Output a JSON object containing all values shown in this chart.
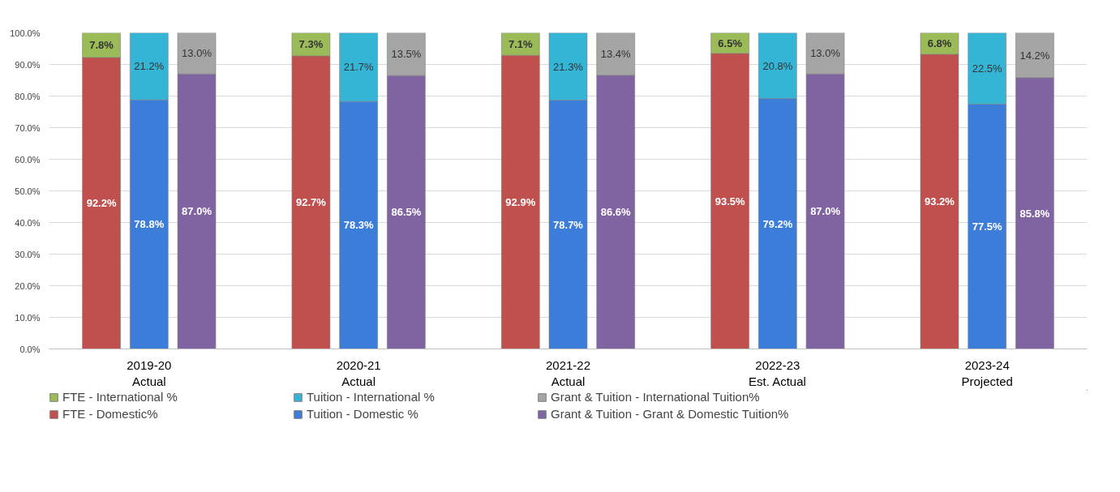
{
  "chart_data": {
    "type": "bar",
    "stacked": true,
    "categories": [
      null,
      "2019-20\nActual",
      null,
      null,
      "2020-21\nActual",
      null,
      null,
      "2021-22\nActual",
      null,
      null,
      "2022-23\nEst. Actual",
      null,
      null,
      "2023-24\nProjected",
      null
    ],
    "ylim": [
      0,
      100
    ],
    "yticks": [
      {
        "value": 0,
        "label": "0.0%"
      },
      {
        "value": 10,
        "label": "10.0%"
      },
      {
        "value": 20,
        "label": "20.0%"
      },
      {
        "value": 30,
        "label": "30.0%"
      },
      {
        "value": 40,
        "label": "40.0%"
      },
      {
        "value": 50,
        "label": "50.0%"
      },
      {
        "value": 60,
        "label": "60.0%"
      },
      {
        "value": 70,
        "label": "70.0%"
      },
      {
        "value": 80,
        "label": "80.0%"
      },
      {
        "value": 90,
        "label": "90.0%"
      },
      {
        "value": 100,
        "label": "100.0%"
      }
    ],
    "grid": "y",
    "legend": "bottom",
    "series": [
      {
        "name": "FTE - Domestic%",
        "color": "#c0504d",
        "values": [
          92.2,
          null,
          null,
          92.7,
          null,
          null,
          92.9,
          null,
          null,
          93.5,
          null,
          null,
          93.2,
          null,
          null
        ],
        "value_labels": [
          "92.2%",
          null,
          null,
          "92.7%",
          null,
          null,
          "92.9%",
          null,
          null,
          "93.5%",
          null,
          null,
          "93.2%",
          null,
          null
        ]
      },
      {
        "name": "Tuition - Domestic %",
        "color": "#3b7dd8",
        "values": [
          null,
          78.8,
          null,
          null,
          78.3,
          null,
          null,
          78.7,
          null,
          null,
          79.2,
          null,
          null,
          77.5,
          null
        ],
        "value_labels": [
          null,
          "78.8%",
          null,
          null,
          "78.3%",
          null,
          null,
          "78.7%",
          null,
          null,
          "79.2%",
          null,
          null,
          "77.5%",
          null
        ]
      },
      {
        "name": "Grant & Tuition - Grant & Domestic Tuition%",
        "color": "#8064a2",
        "values": [
          null,
          null,
          87.0,
          null,
          null,
          86.5,
          null,
          null,
          86.6,
          null,
          null,
          87.0,
          null,
          null,
          85.8
        ],
        "value_labels": [
          null,
          null,
          "87.0%",
          null,
          null,
          "86.5%",
          null,
          null,
          "86.6%",
          null,
          null,
          "87.0%",
          null,
          null,
          "85.8%"
        ]
      },
      {
        "name": "FTE - International %",
        "color": "#9bbb59",
        "values": [
          7.8,
          null,
          null,
          7.3,
          null,
          null,
          7.1,
          null,
          null,
          6.5,
          null,
          null,
          6.8,
          null,
          null
        ],
        "value_labels": [
          "7.8%",
          null,
          null,
          "7.3%",
          null,
          null,
          "7.1%",
          null,
          null,
          "6.5%",
          null,
          null,
          "6.8%",
          null,
          null
        ]
      },
      {
        "name": "Tuition - International %",
        "color": "#35b5d6",
        "values": [
          null,
          21.2,
          null,
          null,
          21.7,
          null,
          null,
          21.3,
          null,
          null,
          20.8,
          null,
          null,
          22.5,
          null
        ],
        "value_labels": [
          null,
          "21.2%",
          null,
          null,
          "21.7%",
          null,
          null,
          "21.3%",
          null,
          null,
          "20.8%",
          null,
          null,
          "22.5%",
          null
        ]
      },
      {
        "name": "Grant & Tuition - International Tuition%",
        "color": "#a5a5a5",
        "values": [
          null,
          null,
          13.0,
          null,
          null,
          13.5,
          null,
          null,
          13.4,
          null,
          null,
          13.0,
          null,
          null,
          14.2
        ],
        "value_labels": [
          null,
          null,
          "13.0%",
          null,
          null,
          "13.5%",
          null,
          null,
          "13.4%",
          null,
          null,
          "13.0%",
          null,
          null,
          "14.2%"
        ]
      }
    ]
  }
}
